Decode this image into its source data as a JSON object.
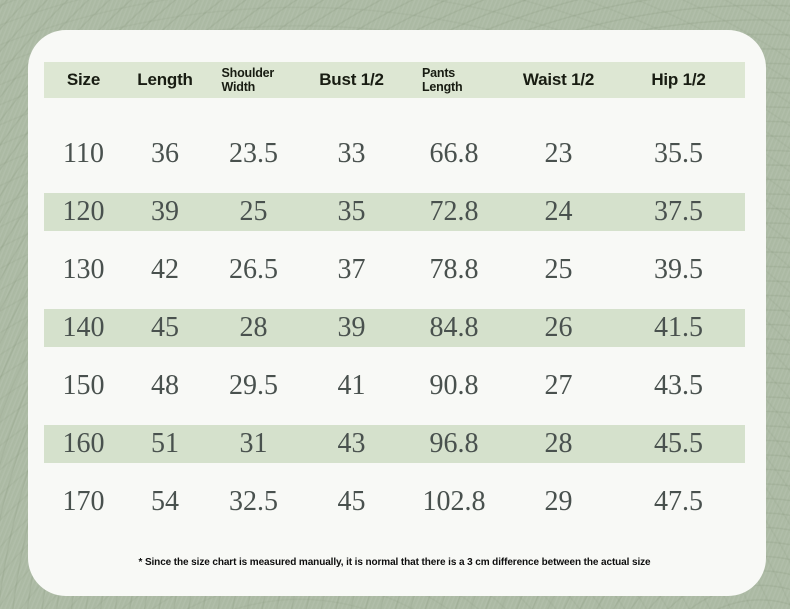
{
  "chart_data": {
    "type": "table",
    "columns": [
      "Size",
      "Length",
      "Shoulder Width",
      "Bust 1/2",
      "Pants Length",
      "Waist 1/2",
      "Hip 1/2"
    ],
    "rows": [
      [
        "110",
        "36",
        "23.5",
        "33",
        "66.8",
        "23",
        "35.5"
      ],
      [
        "120",
        "39",
        "25",
        "35",
        "72.8",
        "24",
        "37.5"
      ],
      [
        "130",
        "42",
        "26.5",
        "37",
        "78.8",
        "25",
        "39.5"
      ],
      [
        "140",
        "45",
        "28",
        "39",
        "84.8",
        "26",
        "41.5"
      ],
      [
        "150",
        "48",
        "29.5",
        "41",
        "90.8",
        "27",
        "43.5"
      ],
      [
        "160",
        "51",
        "31",
        "43",
        "96.8",
        "28",
        "45.5"
      ],
      [
        "170",
        "54",
        "32.5",
        "45",
        "102.8",
        "29",
        "47.5"
      ]
    ],
    "footnote": "* Since the size chart is measured manually, it is normal that there is a 3 cm difference between the actual size",
    "layout_hints": "striped rows on sizes 120/140/160, header row shaded"
  },
  "colors": {
    "background": "#adbba5",
    "card": "#f8f9f6",
    "header_row_bg": "#dde7d3",
    "stripe_row_bg": "#d5e1cc",
    "header_text": "#181c12",
    "data_text": "#49514e"
  }
}
